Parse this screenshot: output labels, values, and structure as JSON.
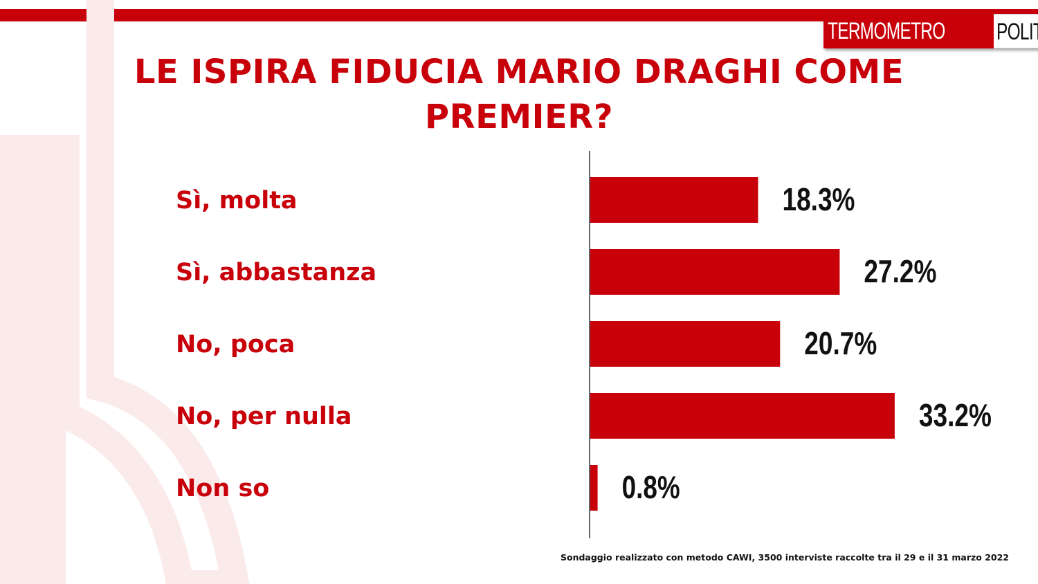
{
  "brand": {
    "part1": "TERMOMETRO",
    "part2": "POLITICO"
  },
  "colors": {
    "accent": "#c8000a",
    "label": "#c8000a",
    "value": "#111111"
  },
  "chart_data": {
    "type": "bar",
    "orientation": "horizontal",
    "title": "LE ISPIRA FIDUCIA MARIO DRAGHI COME PREMIER?",
    "categories": [
      "Sì, molta",
      "Sì, abbastanza",
      "No, poca",
      "No, per nulla",
      "Non so"
    ],
    "values": [
      18.3,
      27.2,
      20.7,
      33.2,
      0.8
    ],
    "value_labels": [
      "18.3%",
      "27.2%",
      "20.7%",
      "33.2%",
      "0.8%"
    ],
    "unit": "%",
    "grid": false,
    "legend": "none"
  },
  "source_note": "Sondaggio realizzato con metodo CAWI, 3500 interviste raccolte tra il 29 e il 31 marzo 2022"
}
